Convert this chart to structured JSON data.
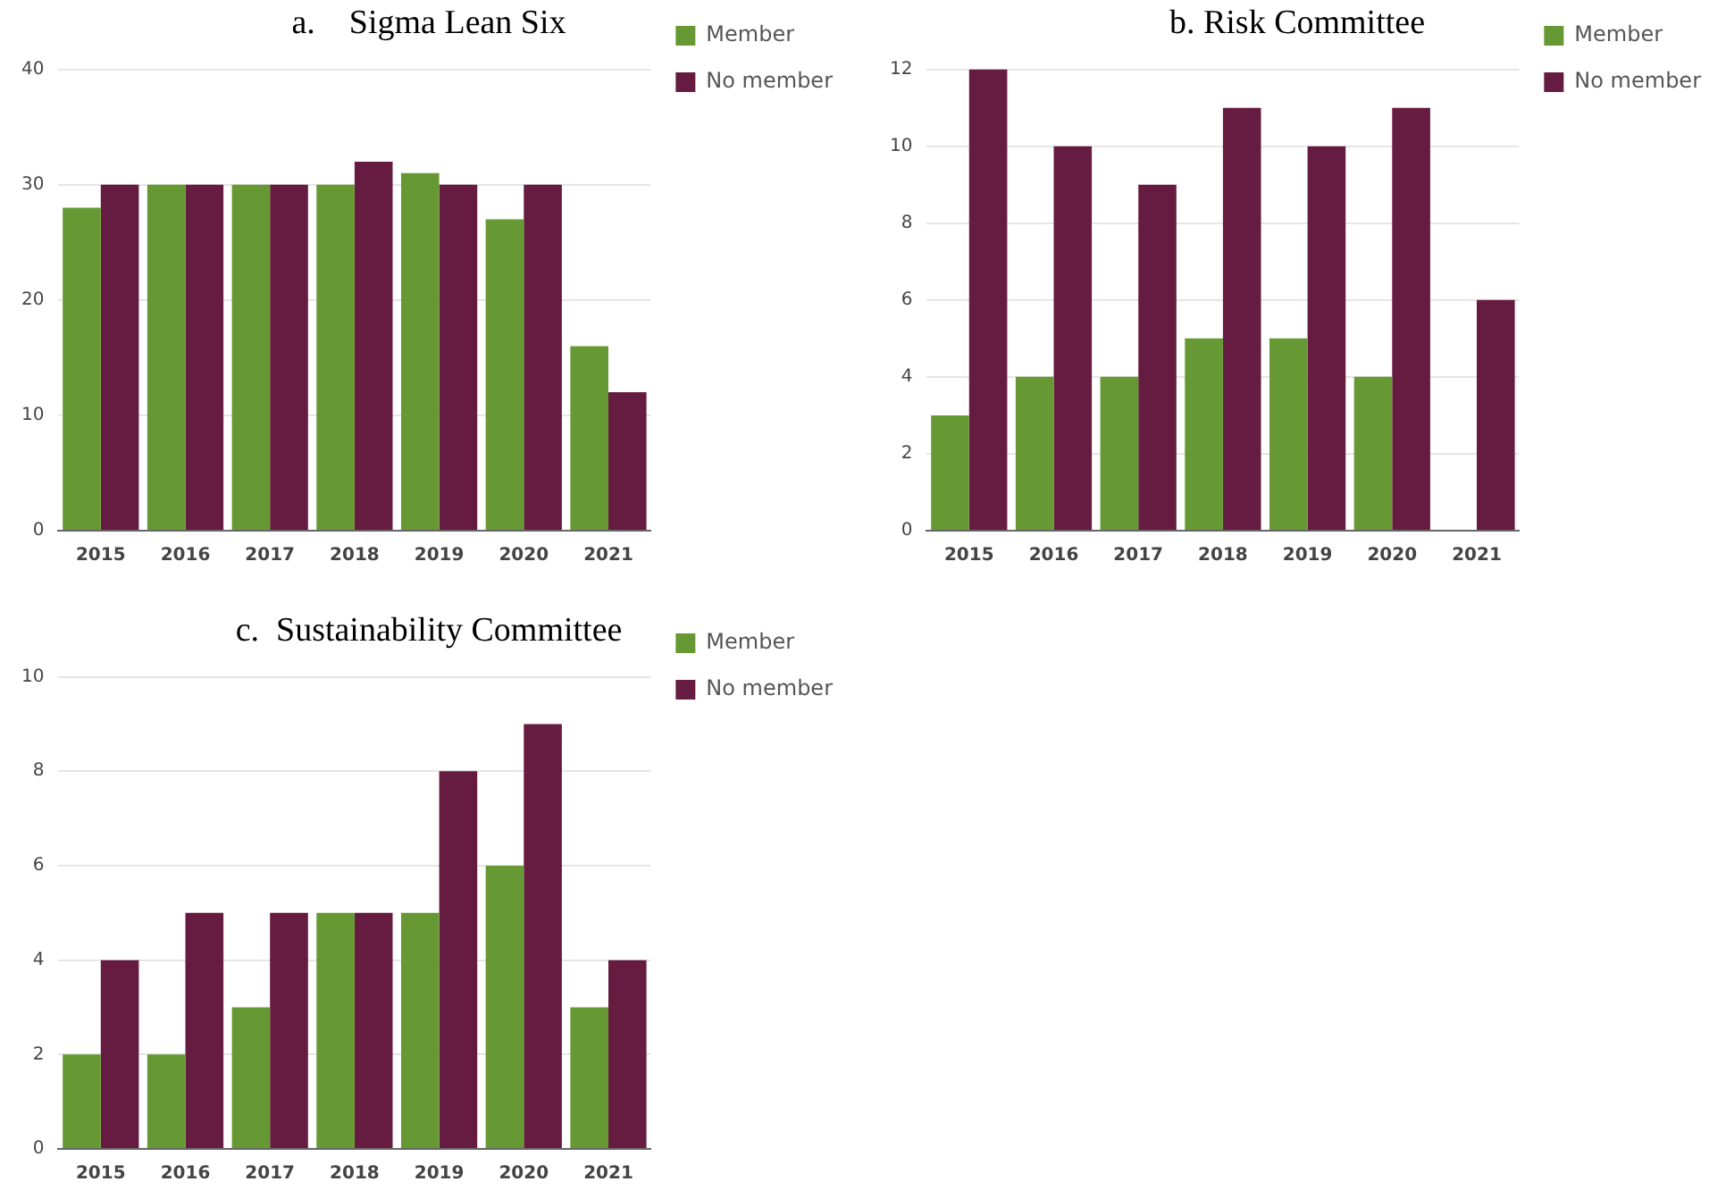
{
  "chart_data": [
    {
      "type": "bar",
      "title": "a.    Sigma Lean Six",
      "categories": [
        "2015",
        "2016",
        "2017",
        "2018",
        "2019",
        "2020",
        "2021"
      ],
      "series": [
        {
          "name": "Member",
          "color": "#669933",
          "values": [
            28,
            30,
            30,
            30,
            31,
            27,
            16
          ]
        },
        {
          "name": "No member",
          "color": "#661c40",
          "values": [
            30,
            30,
            30,
            32,
            30,
            30,
            12
          ]
        }
      ],
      "ylim": [
        0,
        40
      ],
      "yticks": [
        0,
        10,
        20,
        30,
        40
      ],
      "grid": "y",
      "legend": "top right"
    },
    {
      "type": "bar",
      "title": "b. Risk Committee",
      "categories": [
        "2015",
        "2016",
        "2017",
        "2018",
        "2019",
        "2020",
        "2021"
      ],
      "series": [
        {
          "name": "Member",
          "color": "#669933",
          "values": [
            3,
            4,
            4,
            5,
            5,
            4,
            0
          ]
        },
        {
          "name": "No member",
          "color": "#661c40",
          "values": [
            12,
            10,
            9,
            11,
            10,
            11,
            6
          ]
        }
      ],
      "ylim": [
        0,
        12
      ],
      "yticks": [
        0,
        2,
        4,
        6,
        8,
        10,
        12
      ],
      "grid": "y",
      "legend": "top right"
    },
    {
      "type": "bar",
      "title": "c.  Sustainability Committee",
      "categories": [
        "2015",
        "2016",
        "2017",
        "2018",
        "2019",
        "2020",
        "2021"
      ],
      "series": [
        {
          "name": "Member",
          "color": "#669933",
          "values": [
            2,
            2,
            3,
            5,
            5,
            6,
            3
          ]
        },
        {
          "name": "No member",
          "color": "#661c40",
          "values": [
            4,
            5,
            5,
            5,
            8,
            9,
            4
          ]
        }
      ],
      "ylim": [
        0,
        10
      ],
      "yticks": [
        0,
        2,
        4,
        6,
        8,
        10
      ],
      "grid": "y",
      "legend": "top right"
    }
  ]
}
